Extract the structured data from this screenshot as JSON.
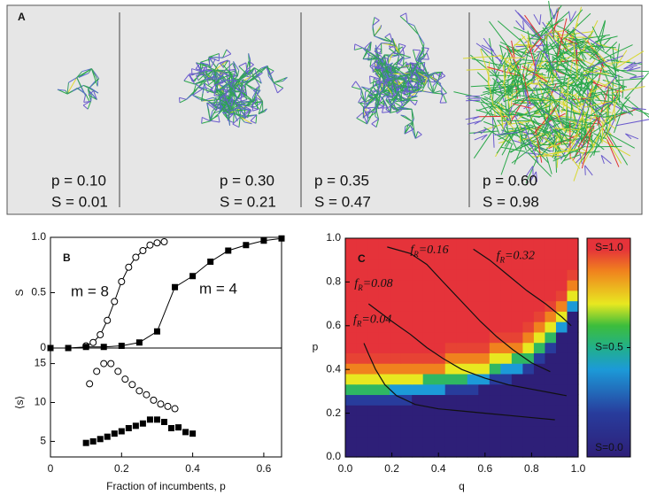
{
  "panel_a": {
    "label": "A",
    "networks": [
      {
        "p_label": "p = 0.10",
        "s_label": "S = 0.01"
      },
      {
        "p_label": "p = 0.30",
        "s_label": "S = 0.21"
      },
      {
        "p_label": "p = 0.35",
        "s_label": "S = 0.47"
      },
      {
        "p_label": "p = 0.60",
        "s_label": "S = 0.98"
      }
    ]
  },
  "chart_data": [
    {
      "type": "line",
      "panel_label": "B",
      "ylabel": "S",
      "xlim": [
        0,
        0.65
      ],
      "ylim": [
        0,
        1
      ],
      "yticks": [
        0,
        0.5,
        {
          "value": 1,
          "label": "1.0"
        }
      ],
      "series": [
        {
          "name": "m = 8",
          "marker": "open-circle",
          "x": [
            0.1,
            0.12,
            0.14,
            0.16,
            0.18,
            0.2,
            0.22,
            0.24,
            0.26,
            0.28,
            0.3,
            0.32
          ],
          "values": [
            0.02,
            0.05,
            0.12,
            0.25,
            0.42,
            0.6,
            0.73,
            0.82,
            0.88,
            0.93,
            0.95,
            0.96
          ]
        },
        {
          "name": "m = 4",
          "marker": "filled-square",
          "x": [
            0.0,
            0.05,
            0.1,
            0.15,
            0.2,
            0.25,
            0.3,
            0.35,
            0.4,
            0.45,
            0.5,
            0.55,
            0.6,
            0.65
          ],
          "values": [
            0,
            0,
            0.01,
            0.01,
            0.02,
            0.05,
            0.15,
            0.55,
            0.65,
            0.78,
            0.88,
            0.93,
            0.97,
            0.99
          ]
        }
      ]
    },
    {
      "type": "scatter",
      "ylabel": "⟨s⟩",
      "xlabel": "Fraction of incumbents, p",
      "xlim": [
        0,
        0.65
      ],
      "xticks": [
        0,
        0.2,
        0.4,
        0.6
      ],
      "ylim": [
        3,
        17
      ],
      "yticks": [
        5,
        10,
        15
      ],
      "series": [
        {
          "marker": "open-circle",
          "x": [
            0.11,
            0.13,
            0.15,
            0.17,
            0.19,
            0.21,
            0.23,
            0.25,
            0.27,
            0.29,
            0.31,
            0.33,
            0.35
          ],
          "values": [
            12.4,
            14,
            15,
            15,
            14,
            13,
            12.3,
            11.5,
            11,
            10.3,
            9.8,
            9.5,
            9.2
          ]
        },
        {
          "marker": "filled-square",
          "x": [
            0.1,
            0.12,
            0.14,
            0.16,
            0.18,
            0.2,
            0.22,
            0.24,
            0.26,
            0.28,
            0.3,
            0.32,
            0.34,
            0.36,
            0.38,
            0.4
          ],
          "values": [
            4.8,
            5,
            5.3,
            5.6,
            6,
            6.3,
            6.7,
            7,
            7.3,
            7.8,
            7.8,
            7.5,
            6.7,
            6.8,
            6.2,
            6.0
          ]
        }
      ]
    },
    {
      "type": "heatmap",
      "panel_label": "C",
      "xlabel": "q",
      "ylabel": "p",
      "xlim": [
        0,
        1
      ],
      "ylim": [
        0,
        1
      ],
      "xticks": [
        {
          "value": 0,
          "label": "0.0"
        },
        0.2,
        0.4,
        0.6,
        0.8,
        {
          "value": 1,
          "label": "1.0"
        }
      ],
      "yticks": [
        {
          "value": 0,
          "label": "0.0"
        },
        0.2,
        0.4,
        0.6,
        0.8,
        {
          "value": 1,
          "label": "1.0"
        }
      ],
      "clim": [
        0,
        1
      ],
      "colorbar_ticks": [
        {
          "value": 1,
          "label": "S=1.0"
        },
        {
          "value": 0.5,
          "label": "S=0.5"
        },
        {
          "value": 0,
          "label": "S=0.0"
        }
      ],
      "z": [
        [
          0,
          0,
          0,
          0,
          0,
          0,
          0,
          0,
          0,
          0,
          0,
          0,
          0,
          0,
          0,
          0,
          0,
          0,
          0,
          0,
          0
        ],
        [
          0,
          0,
          0,
          0,
          0,
          0,
          0,
          0,
          0,
          0,
          0,
          0,
          0,
          0,
          0,
          0,
          0,
          0,
          0,
          0,
          0
        ],
        [
          0,
          0,
          0,
          0,
          0,
          0,
          0,
          0,
          0,
          0,
          0,
          0,
          0,
          0,
          0,
          0,
          0,
          0,
          0,
          0,
          0
        ],
        [
          0,
          0,
          0,
          0,
          0,
          0,
          0,
          0,
          0,
          0,
          0,
          0,
          0,
          0,
          0,
          0,
          0,
          0,
          0,
          0,
          0
        ],
        [
          0,
          0,
          0,
          0,
          0,
          0,
          0,
          0,
          0,
          0,
          0,
          0,
          0,
          0,
          0,
          0,
          0,
          0,
          0,
          0,
          0
        ],
        [
          0.2,
          0.2,
          0.2,
          0.2,
          0.2,
          0.2,
          0,
          0,
          0,
          0,
          0,
          0,
          0,
          0,
          0,
          0,
          0,
          0,
          0,
          0,
          0
        ],
        [
          0.55,
          0.55,
          0.55,
          0.55,
          0.4,
          0.4,
          0.4,
          0.4,
          0.4,
          0.2,
          0.2,
          0.2,
          0,
          0,
          0,
          0,
          0,
          0,
          0,
          0,
          0
        ],
        [
          0.7,
          0.7,
          0.7,
          0.7,
          0.7,
          0.7,
          0.7,
          0.55,
          0.55,
          0.55,
          0.55,
          0.4,
          0.4,
          0.2,
          0.2,
          0,
          0,
          0,
          0,
          0,
          0
        ],
        [
          0.85,
          0.85,
          0.85,
          0.85,
          0.85,
          0.85,
          0.85,
          0.85,
          0.85,
          0.7,
          0.7,
          0.7,
          0.7,
          0.55,
          0.4,
          0.4,
          0.2,
          0,
          0,
          0,
          0
        ],
        [
          0.93,
          0.93,
          0.93,
          0.93,
          0.93,
          0.93,
          0.93,
          0.93,
          0.93,
          0.85,
          0.85,
          0.85,
          0.85,
          0.7,
          0.7,
          0.55,
          0.55,
          0.2,
          0,
          0,
          0
        ],
        [
          0.98,
          0.98,
          0.98,
          0.98,
          0.98,
          0.98,
          0.98,
          0.98,
          0.98,
          0.93,
          0.93,
          0.93,
          0.93,
          0.85,
          0.85,
          0.85,
          0.7,
          0.55,
          0.2,
          0,
          0
        ],
        [
          0.98,
          0.98,
          0.98,
          0.98,
          0.98,
          0.98,
          0.98,
          0.98,
          0.98,
          0.98,
          0.98,
          0.98,
          0.98,
          0.93,
          0.93,
          0.93,
          0.85,
          0.7,
          0.55,
          0,
          0
        ],
        [
          0.98,
          0.98,
          0.98,
          0.98,
          0.98,
          0.98,
          0.98,
          0.98,
          0.98,
          0.98,
          0.98,
          0.98,
          0.98,
          0.98,
          0.98,
          0.98,
          0.93,
          0.85,
          0.7,
          0.4,
          0
        ],
        [
          0.98,
          0.98,
          0.98,
          0.98,
          0.98,
          0.98,
          0.98,
          0.98,
          0.98,
          0.98,
          0.98,
          0.98,
          0.98,
          0.98,
          0.98,
          0.98,
          0.98,
          0.93,
          0.85,
          0.7,
          0
        ],
        [
          0.98,
          0.98,
          0.98,
          0.98,
          0.98,
          0.98,
          0.98,
          0.98,
          0.98,
          0.98,
          0.98,
          0.98,
          0.98,
          0.98,
          0.98,
          0.98,
          0.98,
          0.98,
          0.93,
          0.85,
          0.4
        ],
        [
          0.98,
          0.98,
          0.98,
          0.98,
          0.98,
          0.98,
          0.98,
          0.98,
          0.98,
          0.98,
          0.98,
          0.98,
          0.98,
          0.98,
          0.98,
          0.98,
          0.98,
          0.98,
          0.98,
          0.93,
          0.7
        ],
        [
          0.98,
          0.98,
          0.98,
          0.98,
          0.98,
          0.98,
          0.98,
          0.98,
          0.98,
          0.98,
          0.98,
          0.98,
          0.98,
          0.98,
          0.98,
          0.98,
          0.98,
          0.98,
          0.98,
          0.98,
          0.85
        ],
        [
          0.98,
          0.98,
          0.98,
          0.98,
          0.98,
          0.98,
          0.98,
          0.98,
          0.98,
          0.98,
          0.98,
          0.98,
          0.98,
          0.98,
          0.98,
          0.98,
          0.98,
          0.98,
          0.98,
          0.98,
          0.93
        ],
        [
          0.98,
          0.98,
          0.98,
          0.98,
          0.98,
          0.98,
          0.98,
          0.98,
          0.98,
          0.98,
          0.98,
          0.98,
          0.98,
          0.98,
          0.98,
          0.98,
          0.98,
          0.98,
          0.98,
          0.98,
          0.98
        ],
        [
          0.98,
          0.98,
          0.98,
          0.98,
          0.98,
          0.98,
          0.98,
          0.98,
          0.98,
          0.98,
          0.98,
          0.98,
          0.98,
          0.98,
          0.98,
          0.98,
          0.98,
          0.98,
          0.98,
          0.98,
          0.98
        ],
        [
          0.98,
          0.98,
          0.98,
          0.98,
          0.98,
          0.98,
          0.98,
          0.98,
          0.98,
          0.98,
          0.98,
          0.98,
          0.98,
          0.98,
          0.98,
          0.98,
          0.98,
          0.98,
          0.98,
          0.98,
          0.98
        ]
      ],
      "contours": [
        {
          "f": "f",
          "sub": "R",
          "text": "=0.04",
          "q": [
            0.08,
            0.1,
            0.13,
            0.17,
            0.22,
            0.3,
            0.4,
            0.5,
            0.6,
            0.7,
            0.8,
            0.9
          ],
          "p": [
            0.52,
            0.47,
            0.4,
            0.33,
            0.28,
            0.24,
            0.22,
            0.21,
            0.2,
            0.19,
            0.18,
            0.17
          ]
        },
        {
          "f": "f",
          "sub": "R",
          "text": "=0.08",
          "q": [
            0.1,
            0.15,
            0.2,
            0.28,
            0.35,
            0.42,
            0.5,
            0.6,
            0.7,
            0.8,
            0.9,
            0.95
          ],
          "p": [
            0.7,
            0.66,
            0.62,
            0.56,
            0.5,
            0.45,
            0.4,
            0.36,
            0.33,
            0.31,
            0.29,
            0.28
          ]
        },
        {
          "f": "f",
          "sub": "R",
          "text": "=0.16",
          "q": [
            0.18,
            0.28,
            0.35,
            0.42,
            0.5,
            0.58,
            0.65,
            0.72,
            0.8,
            0.88
          ],
          "p": [
            0.96,
            0.93,
            0.88,
            0.8,
            0.71,
            0.62,
            0.55,
            0.49,
            0.43,
            0.39
          ]
        },
        {
          "f": "f",
          "sub": "R",
          "text": "=0.32",
          "q": [
            0.55,
            0.62,
            0.7,
            0.78,
            0.86,
            0.93,
            0.97
          ],
          "p": [
            0.95,
            0.9,
            0.83,
            0.76,
            0.7,
            0.64,
            0.6
          ]
        }
      ]
    }
  ]
}
